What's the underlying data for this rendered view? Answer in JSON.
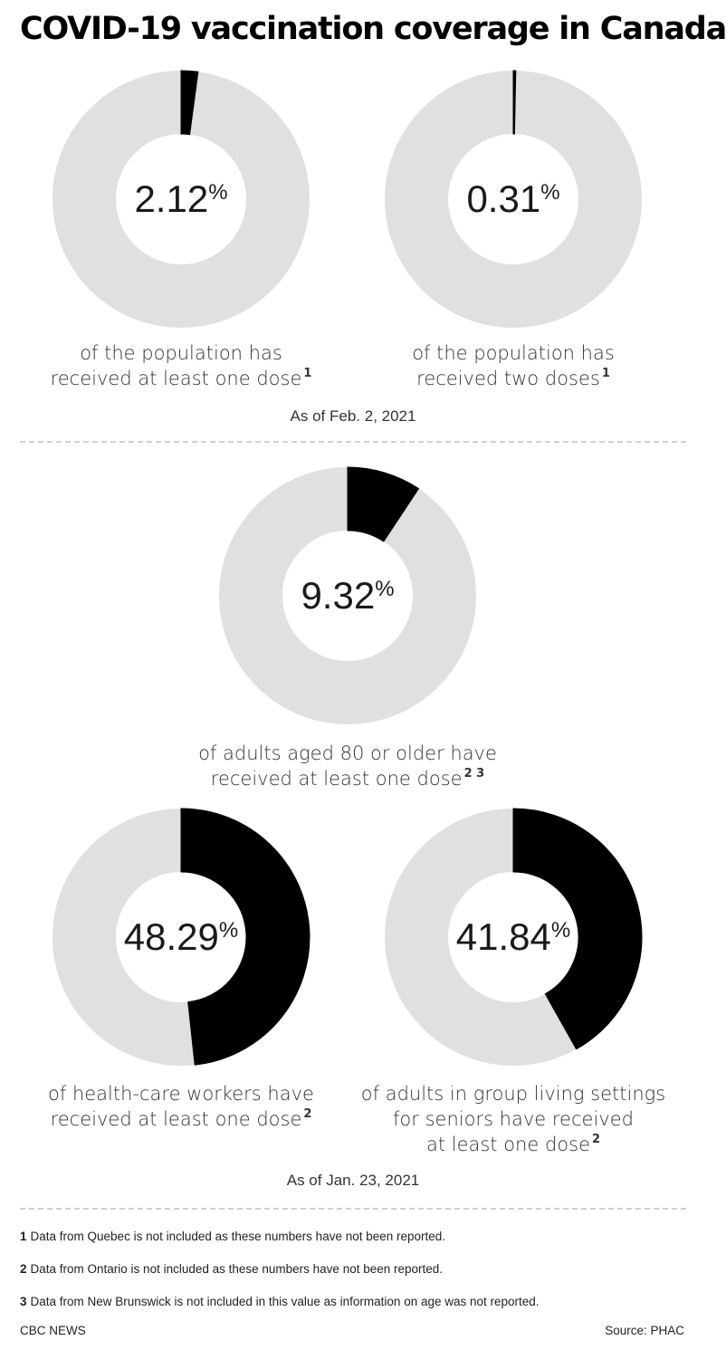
{
  "title": "COVID-19 vaccination coverage in Canada",
  "chart_data": [
    {
      "type": "pie",
      "value": 2.12,
      "value_label": "2.12",
      "unit": "%",
      "caption_lines": [
        "of the population has",
        "received at least one dose"
      ],
      "footnote_refs": "1",
      "as_of": "As of Feb. 2, 2021",
      "colors": {
        "filled": "#000000",
        "remaining": "#e0e0e0"
      }
    },
    {
      "type": "pie",
      "value": 0.31,
      "value_label": "0.31",
      "unit": "%",
      "caption_lines": [
        "of the population has",
        "received two doses"
      ],
      "footnote_refs": "1",
      "as_of": "As of Feb. 2, 2021",
      "colors": {
        "filled": "#000000",
        "remaining": "#e0e0e0"
      }
    },
    {
      "type": "pie",
      "value": 9.32,
      "value_label": "9.32",
      "unit": "%",
      "caption_lines": [
        "of adults aged 80 or older have",
        "received at least one dose"
      ],
      "footnote_refs": "2 3",
      "as_of": "As of Jan. 23, 2021",
      "colors": {
        "filled": "#000000",
        "remaining": "#e0e0e0"
      }
    },
    {
      "type": "pie",
      "value": 48.29,
      "value_label": "48.29",
      "unit": "%",
      "caption_lines": [
        "of health-care workers have",
        "received at least one dose"
      ],
      "footnote_refs": "2",
      "as_of": "As of Jan. 23, 2021",
      "colors": {
        "filled": "#000000",
        "remaining": "#e0e0e0"
      }
    },
    {
      "type": "pie",
      "value": 41.84,
      "value_label": "41.84",
      "unit": "%",
      "caption_lines": [
        "of adults in group living settings",
        "for seniors have received",
        "at least one dose"
      ],
      "footnote_refs": "2",
      "as_of": "As of Jan. 23, 2021",
      "colors": {
        "filled": "#000000",
        "remaining": "#e0e0e0"
      }
    }
  ],
  "as_of_labels": [
    "As of Feb. 2, 2021",
    "As of Jan. 23, 2021"
  ],
  "footnotes": [
    {
      "num": "1",
      "text": "Data from Quebec is not included as these numbers have not been reported."
    },
    {
      "num": "2",
      "text": "Data from Ontario is not included as these numbers have not been reported."
    },
    {
      "num": "3",
      "text": "Data from New Brunswick is not included in this value as information on age was not reported."
    }
  ],
  "credit_left": "CBC NEWS",
  "credit_right": "Source: PHAC"
}
